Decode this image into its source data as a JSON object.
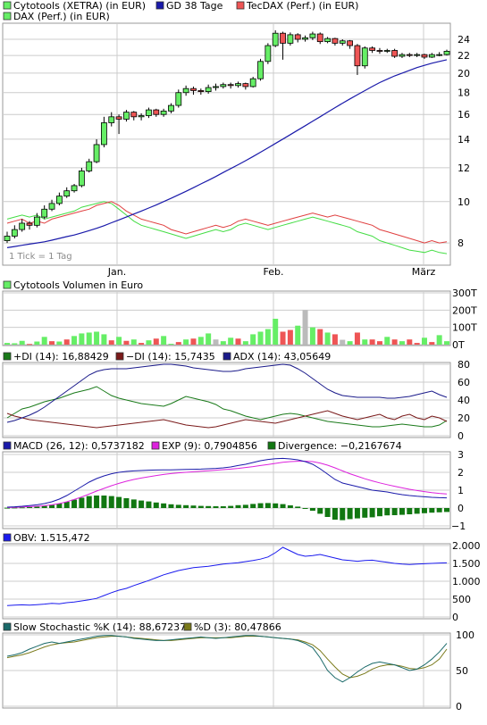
{
  "colors": {
    "up": "#66ee66",
    "down": "#ee5555",
    "neutral": "#bbbbbb",
    "gd": "#1a1aaa",
    "tecdax": "#e04040",
    "dax": "#44dd44",
    "grid": "#cccccc",
    "plusdi": "#1a7a1a",
    "minusdi": "#7a1a1a",
    "adx": "#1a1a8a",
    "macd": "#1a1aaa",
    "exp": "#dd22dd",
    "divergence": "#117711",
    "obv": "#1a1aee",
    "stoch_k": "#1a6a6a",
    "stoch_d": "#7a7a1a"
  },
  "legend_main": {
    "item1": "Cytotools (XETRA) (in EUR)",
    "item2": "GD 38 Tage",
    "item3": "TecDAX (Perf.) (in EUR)",
    "item4": "DAX (Perf.) (in EUR)"
  },
  "tick_note": "1 Tick = 1 Tag",
  "x_labels": [
    "Jan.",
    "Feb.",
    "März"
  ],
  "volume_title": "Cytotools Volumen in Euro",
  "adx_legend": {
    "plus": "+DI (14): 16,88429",
    "minus": "−DI (14): 15,7435",
    "adx": "ADX (14): 43,05649"
  },
  "macd_legend": {
    "macd": "MACD (26, 12): 0,5737182",
    "exp": "EXP (9): 0,7904856",
    "div": "Divergence: −0,2167674"
  },
  "obv_legend": "OBV: 1.515,472",
  "stoch_legend": {
    "k": "Slow Stochastic %K (14): 88,67237",
    "d": "%D (3): 80,47866"
  },
  "chart_data": [
    {
      "type": "candlestick",
      "title": "Cytotools (XETRA) (in EUR)",
      "x_labels": [
        "Jan.",
        "Feb.",
        "März"
      ],
      "y_ticks": [
        8,
        10,
        12,
        14,
        16,
        18,
        20,
        22,
        24
      ],
      "scale": "log",
      "candles": [
        [
          8.1,
          8.3,
          8.0,
          8.5
        ],
        [
          8.3,
          8.6,
          8.2,
          8.8
        ],
        [
          8.6,
          8.9,
          8.5,
          9.1
        ],
        [
          8.9,
          8.8,
          8.6,
          9.0
        ],
        [
          8.8,
          9.2,
          8.7,
          9.4
        ],
        [
          9.2,
          9.6,
          9.1,
          9.8
        ],
        [
          9.6,
          9.9,
          9.5,
          10.1
        ],
        [
          9.9,
          10.3,
          9.8,
          10.5
        ],
        [
          10.3,
          10.6,
          10.2,
          10.8
        ],
        [
          10.6,
          10.9,
          10.5,
          11.0
        ],
        [
          10.9,
          11.8,
          10.8,
          12.0
        ],
        [
          11.8,
          12.4,
          11.7,
          12.6
        ],
        [
          12.4,
          13.6,
          12.3,
          14.0
        ],
        [
          13.6,
          15.3,
          13.4,
          15.8
        ],
        [
          15.3,
          15.8,
          15.0,
          16.2
        ],
        [
          15.8,
          15.6,
          14.4,
          16.0
        ],
        [
          15.6,
          16.2,
          15.4,
          16.4
        ],
        [
          16.2,
          15.8,
          15.5,
          16.3
        ],
        [
          15.8,
          15.9,
          15.5,
          16.1
        ],
        [
          15.9,
          16.4,
          15.7,
          16.6
        ],
        [
          16.4,
          16.0,
          15.8,
          16.5
        ],
        [
          16.0,
          16.3,
          15.8,
          16.5
        ],
        [
          16.3,
          16.8,
          16.1,
          17.0
        ],
        [
          16.8,
          18.0,
          16.6,
          18.3
        ],
        [
          18.0,
          18.4,
          17.7,
          18.7
        ],
        [
          18.4,
          18.2,
          17.8,
          18.6
        ],
        [
          18.2,
          18.1,
          17.8,
          18.4
        ],
        [
          18.1,
          18.5,
          17.9,
          18.8
        ],
        [
          18.5,
          18.6,
          18.2,
          18.9
        ],
        [
          18.6,
          18.8,
          18.4,
          19.0
        ],
        [
          18.8,
          18.7,
          18.4,
          19.0
        ],
        [
          18.7,
          18.9,
          18.5,
          19.1
        ],
        [
          18.9,
          18.6,
          18.3,
          19.0
        ],
        [
          18.6,
          19.4,
          18.5,
          19.6
        ],
        [
          19.4,
          21.3,
          19.2,
          21.6
        ],
        [
          21.3,
          23.2,
          21.0,
          23.5
        ],
        [
          23.2,
          24.8,
          23.0,
          25.2
        ],
        [
          24.8,
          23.5,
          21.5,
          25.0
        ],
        [
          23.5,
          24.6,
          23.2,
          24.9
        ],
        [
          24.6,
          24.0,
          23.6,
          24.8
        ],
        [
          24.0,
          24.2,
          23.7,
          24.5
        ],
        [
          24.2,
          24.7,
          23.9,
          25.0
        ],
        [
          24.7,
          23.7,
          23.4,
          24.9
        ],
        [
          23.7,
          24.1,
          23.5,
          24.3
        ],
        [
          24.1,
          23.5,
          23.2,
          24.2
        ],
        [
          23.5,
          23.8,
          23.2,
          24.0
        ],
        [
          23.8,
          23.2,
          22.8,
          23.9
        ],
        [
          23.2,
          20.8,
          19.8,
          23.4
        ],
        [
          20.8,
          22.9,
          20.5,
          23.1
        ],
        [
          22.9,
          22.6,
          22.3,
          23.1
        ],
        [
          22.6,
          22.5,
          22.2,
          22.9
        ],
        [
          22.5,
          22.6,
          22.3,
          22.8
        ],
        [
          22.6,
          21.9,
          21.7,
          22.8
        ],
        [
          21.9,
          22.1,
          21.7,
          22.3
        ],
        [
          22.1,
          22.0,
          21.8,
          22.3
        ],
        [
          22.0,
          22.1,
          21.8,
          22.3
        ],
        [
          22.1,
          21.8,
          21.6,
          22.2
        ],
        [
          21.8,
          22.1,
          21.7,
          22.3
        ],
        [
          22.1,
          22.1,
          21.9,
          22.4
        ],
        [
          22.1,
          22.5,
          22.0,
          22.7
        ]
      ],
      "gd38": [
        7.8,
        7.85,
        7.9,
        7.95,
        8.0,
        8.05,
        8.12,
        8.2,
        8.28,
        8.35,
        8.45,
        8.55,
        8.66,
        8.78,
        8.92,
        9.06,
        9.2,
        9.35,
        9.5,
        9.66,
        9.82,
        10.0,
        10.18,
        10.37,
        10.57,
        10.78,
        11.0,
        11.22,
        11.45,
        11.7,
        11.95,
        12.2,
        12.47,
        12.75,
        13.05,
        13.36,
        13.68,
        14.01,
        14.35,
        14.7,
        15.06,
        15.43,
        15.8,
        16.2,
        16.6,
        17.0,
        17.4,
        17.8,
        18.2,
        18.6,
        19.0,
        19.35,
        19.7,
        20.0,
        20.3,
        20.6,
        20.85,
        21.1,
        21.3,
        21.5
      ],
      "tecdax_perf": [
        8.9,
        9.0,
        9.1,
        8.9,
        9.0,
        8.9,
        9.1,
        9.2,
        9.3,
        9.4,
        9.5,
        9.6,
        9.8,
        9.9,
        10.0,
        9.8,
        9.5,
        9.3,
        9.1,
        9.0,
        8.9,
        8.8,
        8.6,
        8.5,
        8.4,
        8.5,
        8.6,
        8.7,
        8.8,
        8.7,
        8.8,
        9.0,
        9.1,
        9.0,
        8.9,
        8.8,
        8.9,
        9.0,
        9.1,
        9.2,
        9.3,
        9.4,
        9.3,
        9.2,
        9.3,
        9.2,
        9.1,
        9.0,
        8.9,
        8.8,
        8.6,
        8.5,
        8.4,
        8.3,
        8.2,
        8.1,
        8.0,
        8.1,
        8.0,
        8.05
      ],
      "dax_perf": [
        9.1,
        9.2,
        9.3,
        9.2,
        9.3,
        9.1,
        9.2,
        9.3,
        9.4,
        9.5,
        9.7,
        9.8,
        9.9,
        10.0,
        9.9,
        9.6,
        9.3,
        9.0,
        8.8,
        8.7,
        8.6,
        8.5,
        8.4,
        8.3,
        8.2,
        8.3,
        8.4,
        8.5,
        8.6,
        8.5,
        8.6,
        8.8,
        8.9,
        8.8,
        8.7,
        8.6,
        8.7,
        8.8,
        8.9,
        9.0,
        9.1,
        9.2,
        9.1,
        9.0,
        8.9,
        8.8,
        8.7,
        8.5,
        8.4,
        8.3,
        8.1,
        8.0,
        7.9,
        7.8,
        7.7,
        7.65,
        7.6,
        7.7,
        7.6,
        7.55
      ]
    },
    {
      "type": "bar",
      "title": "Cytotools Volumen in Euro",
      "y_ticks": [
        "0T",
        "100T",
        "200T",
        "300T"
      ],
      "values": [
        10,
        8,
        22,
        4,
        18,
        45,
        20,
        18,
        30,
        50,
        65,
        70,
        75,
        60,
        25,
        45,
        22,
        30,
        10,
        25,
        35,
        50,
        5,
        15,
        30,
        35,
        45,
        65,
        30,
        20,
        40,
        35,
        20,
        60,
        75,
        90,
        150,
        75,
        85,
        110,
        200,
        100,
        90,
        70,
        60,
        28,
        20,
        70,
        30,
        30,
        20,
        45,
        30,
        20,
        30,
        10,
        40,
        15,
        55,
        20
      ],
      "bar_types": [
        "g",
        "g",
        "g",
        "r",
        "g",
        "g",
        "r",
        "g",
        "r",
        "g",
        "g",
        "g",
        "g",
        "g",
        "r",
        "g",
        "r",
        "g",
        "r",
        "g",
        "r",
        "g",
        "g",
        "r",
        "g",
        "r",
        "g",
        "g",
        "n",
        "g",
        "g",
        "r",
        "g",
        "g",
        "g",
        "g",
        "g",
        "r",
        "r",
        "g",
        "n",
        "g",
        "r",
        "g",
        "r",
        "n",
        "g",
        "r",
        "g",
        "r",
        "r",
        "g",
        "r",
        "g",
        "r",
        "r",
        "g",
        "r",
        "g",
        "g"
      ]
    },
    {
      "type": "line",
      "title": "ADX",
      "y_ticks": [
        0,
        20,
        40,
        60,
        80
      ],
      "plus_di": [
        20,
        25,
        30,
        32,
        35,
        38,
        40,
        42,
        45,
        48,
        50,
        52,
        55,
        50,
        45,
        42,
        40,
        38,
        36,
        35,
        34,
        33,
        36,
        40,
        44,
        42,
        40,
        38,
        35,
        30,
        28,
        25,
        22,
        20,
        18,
        20,
        22,
        24,
        25,
        24,
        22,
        20,
        18,
        16,
        15,
        14,
        13,
        12,
        11,
        10,
        10,
        11,
        12,
        13,
        12,
        11,
        10,
        10,
        12,
        17
      ],
      "minus_di": [
        25,
        22,
        20,
        18,
        17,
        16,
        15,
        14,
        13,
        12,
        11,
        10,
        9,
        10,
        11,
        12,
        13,
        14,
        15,
        16,
        17,
        18,
        16,
        14,
        12,
        11,
        10,
        9,
        10,
        12,
        14,
        16,
        18,
        17,
        16,
        15,
        14,
        16,
        18,
        20,
        22,
        24,
        26,
        28,
        25,
        22,
        20,
        18,
        20,
        22,
        24,
        20,
        18,
        22,
        24,
        20,
        18,
        22,
        20,
        16
      ],
      "adx": [
        15,
        17,
        20,
        23,
        27,
        32,
        38,
        44,
        50,
        56,
        62,
        68,
        72,
        74,
        75,
        75,
        75,
        76,
        77,
        78,
        79,
        80,
        80,
        79,
        78,
        76,
        75,
        74,
        73,
        72,
        72,
        73,
        75,
        76,
        77,
        78,
        79,
        80,
        79,
        75,
        70,
        64,
        58,
        52,
        48,
        45,
        44,
        43,
        43,
        43,
        43,
        42,
        42,
        43,
        44,
        46,
        48,
        50,
        46,
        43
      ]
    },
    {
      "type": "line",
      "title": "MACD",
      "y_ticks": [
        -1,
        0,
        1,
        2,
        3
      ],
      "macd": [
        0.05,
        0.07,
        0.1,
        0.14,
        0.18,
        0.25,
        0.35,
        0.5,
        0.7,
        0.95,
        1.2,
        1.45,
        1.65,
        1.8,
        1.92,
        2.0,
        2.05,
        2.08,
        2.1,
        2.12,
        2.13,
        2.14,
        2.14,
        2.15,
        2.16,
        2.17,
        2.18,
        2.2,
        2.22,
        2.25,
        2.3,
        2.38,
        2.45,
        2.55,
        2.65,
        2.72,
        2.76,
        2.78,
        2.75,
        2.7,
        2.6,
        2.45,
        2.2,
        1.9,
        1.6,
        1.4,
        1.3,
        1.2,
        1.1,
        1.0,
        0.95,
        0.9,
        0.82,
        0.75,
        0.7,
        0.66,
        0.63,
        0.6,
        0.58,
        0.57
      ],
      "exp": [
        0.03,
        0.04,
        0.06,
        0.08,
        0.1,
        0.13,
        0.18,
        0.25,
        0.35,
        0.48,
        0.62,
        0.78,
        0.95,
        1.1,
        1.25,
        1.38,
        1.5,
        1.6,
        1.68,
        1.75,
        1.82,
        1.88,
        1.93,
        1.97,
        2.0,
        2.03,
        2.06,
        2.09,
        2.12,
        2.15,
        2.18,
        2.22,
        2.27,
        2.32,
        2.38,
        2.44,
        2.5,
        2.56,
        2.6,
        2.62,
        2.62,
        2.6,
        2.52,
        2.4,
        2.25,
        2.08,
        1.92,
        1.78,
        1.64,
        1.52,
        1.41,
        1.31,
        1.22,
        1.13,
        1.05,
        0.98,
        0.92,
        0.86,
        0.82,
        0.79
      ],
      "divergence": [
        0.02,
        0.03,
        0.04,
        0.06,
        0.08,
        0.12,
        0.17,
        0.25,
        0.35,
        0.47,
        0.58,
        0.67,
        0.7,
        0.7,
        0.67,
        0.62,
        0.55,
        0.48,
        0.42,
        0.37,
        0.31,
        0.26,
        0.21,
        0.18,
        0.16,
        0.14,
        0.12,
        0.11,
        0.1,
        0.1,
        0.12,
        0.16,
        0.18,
        0.23,
        0.27,
        0.28,
        0.26,
        0.22,
        0.15,
        0.08,
        -0.02,
        -0.15,
        -0.32,
        -0.5,
        -0.65,
        -0.68,
        -0.62,
        -0.58,
        -0.54,
        -0.52,
        -0.46,
        -0.41,
        -0.4,
        -0.38,
        -0.35,
        -0.32,
        -0.29,
        -0.26,
        -0.24,
        -0.22
      ]
    },
    {
      "type": "line",
      "title": "OBV",
      "y_ticks": [
        0,
        500,
        "1.000",
        "1.500",
        "2.000"
      ],
      "obv": [
        320,
        330,
        340,
        330,
        345,
        360,
        380,
        370,
        400,
        420,
        450,
        480,
        520,
        600,
        680,
        750,
        800,
        880,
        950,
        1020,
        1100,
        1180,
        1240,
        1300,
        1340,
        1380,
        1400,
        1420,
        1450,
        1480,
        1500,
        1520,
        1550,
        1580,
        1620,
        1680,
        1800,
        1950,
        1850,
        1750,
        1700,
        1720,
        1750,
        1700,
        1650,
        1600,
        1580,
        1560,
        1580,
        1590,
        1560,
        1530,
        1500,
        1480,
        1470,
        1480,
        1490,
        1500,
        1510,
        1515
      ]
    },
    {
      "type": "line",
      "title": "Slow Stochastic",
      "y_ticks": [
        0,
        50,
        100
      ],
      "k": [
        70,
        72,
        75,
        80,
        84,
        88,
        90,
        88,
        90,
        92,
        94,
        96,
        98,
        99,
        99,
        98,
        97,
        95,
        94,
        93,
        92,
        92,
        93,
        94,
        95,
        96,
        97,
        96,
        95,
        96,
        97,
        98,
        99,
        99,
        98,
        97,
        96,
        95,
        94,
        92,
        88,
        82,
        68,
        50,
        40,
        34,
        40,
        48,
        55,
        60,
        62,
        60,
        58,
        54,
        50,
        52,
        58,
        66,
        76,
        88
      ],
      "d": [
        68,
        70,
        72,
        75,
        79,
        83,
        86,
        88,
        89,
        90,
        92,
        94,
        96,
        97,
        98,
        98,
        97,
        96,
        95,
        94,
        93,
        92,
        92,
        93,
        94,
        95,
        96,
        96,
        96,
        96,
        96,
        97,
        98,
        98,
        98,
        97,
        96,
        95,
        94,
        93,
        90,
        86,
        78,
        66,
        55,
        45,
        40,
        42,
        46,
        52,
        56,
        58,
        58,
        56,
        53,
        52,
        54,
        58,
        66,
        80
      ]
    }
  ]
}
